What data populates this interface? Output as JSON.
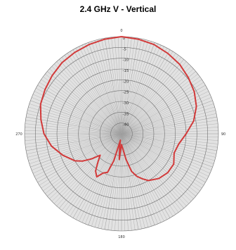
{
  "chart_data": {
    "type": "polar-line",
    "title": "2.4 GHz V - Vertical",
    "angle_labels": [
      "0",
      "90",
      "180",
      "270"
    ],
    "ring_labels": [
      "0",
      "-5",
      "-10",
      "-15",
      "-20",
      "-25",
      "-30",
      "-35",
      "-40"
    ],
    "rlim": [
      -45,
      0
    ],
    "grid": true,
    "series": [
      {
        "color": "#d23a3a",
        "angles_deg": [
          0,
          10,
          20,
          30,
          40,
          50,
          60,
          70,
          80,
          90,
          100,
          110,
          120,
          130,
          140,
          150,
          155,
          160,
          165,
          170,
          175,
          180,
          185,
          188,
          190,
          193,
          196,
          200,
          205,
          210,
          215,
          220,
          225,
          230,
          235,
          240,
          250,
          260,
          270,
          280,
          290,
          300,
          310,
          320,
          330,
          340,
          350,
          360
        ],
        "values_db": [
          0,
          -0.5,
          -1,
          -2,
          -3,
          -4.5,
          -6,
          -8,
          -11,
          -15,
          -18,
          -19,
          -17,
          -17,
          -18,
          -20,
          -22,
          -24,
          -27,
          -33,
          -38,
          -40,
          -33,
          -39,
          -42,
          -40,
          -32,
          -26,
          -25,
          -22,
          -24,
          -28,
          -31,
          -27,
          -23,
          -20,
          -16,
          -12,
          -9,
          -7,
          -5,
          -4,
          -3,
          -2,
          -1.5,
          -1,
          -0.5,
          0
        ]
      }
    ]
  }
}
